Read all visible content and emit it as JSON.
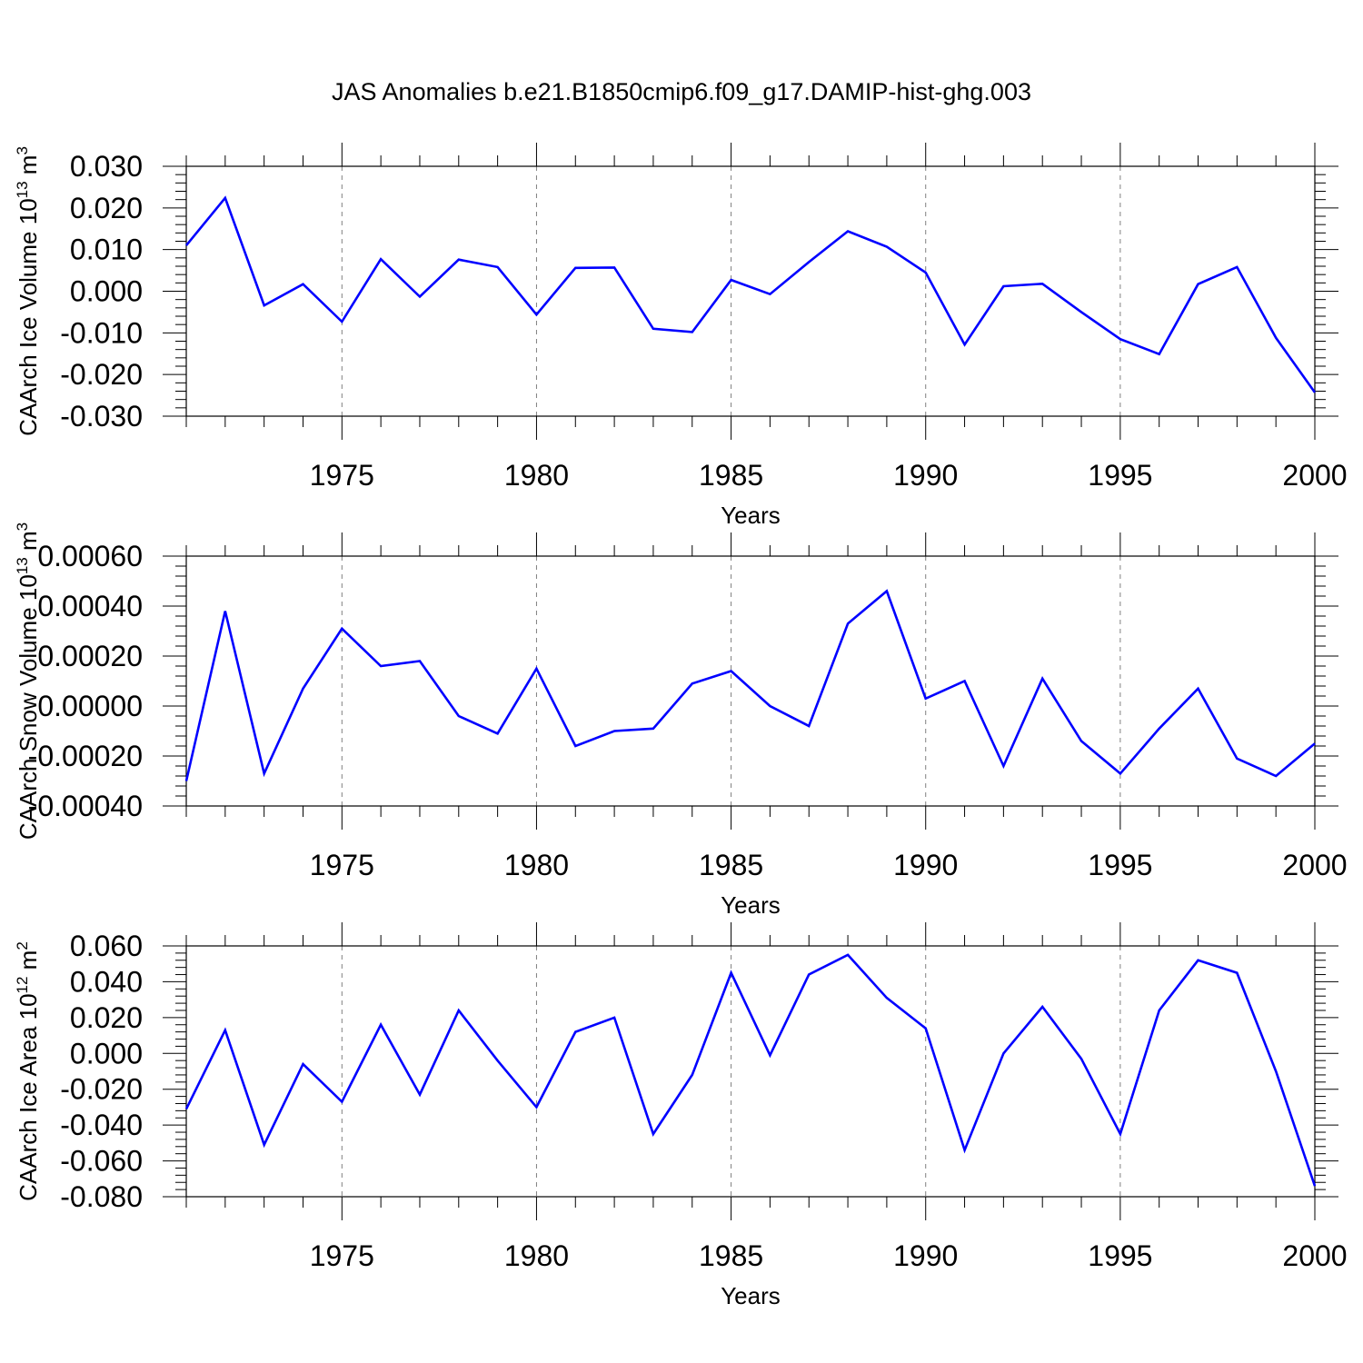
{
  "title": "JAS Anomalies b.e21.B1850cmip6.f09_g17.DAMIP-hist-ghg.003",
  "colors": {
    "series": "#0000ff",
    "axis": "#000000",
    "grid": "#808080"
  },
  "chart_data": [
    {
      "type": "line",
      "ylabel": "CAArch Ice Volume 10",
      "ylabel_exp": "13",
      "ylabel_unit": " m",
      "ylabel_unit_exp": "3",
      "xlabel": "Years",
      "xlim": [
        1971,
        2000
      ],
      "ylim": [
        -0.03,
        0.03
      ],
      "x_ticks": [
        1975,
        1980,
        1985,
        1990,
        1995,
        2000
      ],
      "x_tick_labels": [
        "1975",
        "1980",
        "1985",
        "1990",
        "1995",
        "2000"
      ],
      "y_ticks": [
        -0.03,
        -0.02,
        -0.01,
        0,
        0.01,
        0.02,
        0.03
      ],
      "y_tick_labels": [
        "-0.030",
        "-0.020",
        "-0.010",
        "0.000",
        "0.010",
        "0.020",
        "0.030"
      ],
      "grid": "vertical dashed at major x ticks",
      "series": [
        {
          "name": "CAArch Ice Volume",
          "x": [
            1971,
            1972,
            1973,
            1974,
            1975,
            1976,
            1977,
            1978,
            1979,
            1980,
            1981,
            1982,
            1983,
            1984,
            1985,
            1986,
            1987,
            1988,
            1989,
            1990,
            1991,
            1992,
            1993,
            1994,
            1995,
            1996,
            1997,
            1998,
            1999,
            2000
          ],
          "values": [
            0.011,
            0.0224,
            -0.0034,
            0.0017,
            -0.0073,
            0.0077,
            -0.0013,
            0.0076,
            0.0058,
            -0.0056,
            0.0056,
            0.0057,
            -0.009,
            -0.0098,
            0.0027,
            -0.0007,
            0.007,
            0.0144,
            0.0107,
            0.0045,
            -0.0128,
            0.0012,
            0.0018,
            -0.005,
            -0.0115,
            -0.0151,
            0.0017,
            0.0058,
            -0.0112,
            -0.0243
          ]
        }
      ]
    },
    {
      "type": "line",
      "ylabel": "CAArch Snow Volume 10",
      "ylabel_exp": "13",
      "ylabel_unit": " m",
      "ylabel_unit_exp": "3",
      "xlabel": "Years",
      "xlim": [
        1971,
        2000
      ],
      "ylim": [
        -0.0004,
        0.0006
      ],
      "x_ticks": [
        1975,
        1980,
        1985,
        1990,
        1995,
        2000
      ],
      "x_tick_labels": [
        "1975",
        "1980",
        "1985",
        "1990",
        "1995",
        "2000"
      ],
      "y_ticks": [
        -0.0004,
        -0.0002,
        0,
        0.0002,
        0.0004,
        0.0006
      ],
      "y_tick_labels": [
        "-0.00040",
        "-0.00020",
        "0.00000",
        "0.00020",
        "0.00040",
        "0.00060"
      ],
      "grid": "vertical dashed at major x ticks",
      "series": [
        {
          "name": "CAArch Snow Volume",
          "x": [
            1971,
            1972,
            1973,
            1974,
            1975,
            1976,
            1977,
            1978,
            1979,
            1980,
            1981,
            1982,
            1983,
            1984,
            1985,
            1986,
            1987,
            1988,
            1989,
            1990,
            1991,
            1992,
            1993,
            1994,
            1995,
            1996,
            1997,
            1998,
            1999,
            2000
          ],
          "values": [
            -0.0003,
            0.00038,
            -0.00027,
            7e-05,
            0.00031,
            0.00016,
            0.00018,
            -4e-05,
            -0.00011,
            0.00015,
            -0.00016,
            -0.0001,
            -9e-05,
            9e-05,
            0.00014,
            0.0,
            -8e-05,
            0.00033,
            0.00046,
            3e-05,
            0.0001,
            -0.00024,
            0.00011,
            -0.00014,
            -0.00027,
            -9e-05,
            7e-05,
            -0.00021,
            -0.00028,
            -0.00015
          ]
        }
      ]
    },
    {
      "type": "line",
      "ylabel": "CAArch Ice Area 10",
      "ylabel_exp": "12",
      "ylabel_unit": " m",
      "ylabel_unit_exp": "2",
      "xlabel": "Years",
      "xlim": [
        1971,
        2000
      ],
      "ylim": [
        -0.08,
        0.06
      ],
      "x_ticks": [
        1975,
        1980,
        1985,
        1990,
        1995,
        2000
      ],
      "x_tick_labels": [
        "1975",
        "1980",
        "1985",
        "1990",
        "1995",
        "2000"
      ],
      "y_ticks": [
        -0.08,
        -0.06,
        -0.04,
        -0.02,
        0,
        0.02,
        0.04,
        0.06
      ],
      "y_tick_labels": [
        "-0.080",
        "-0.060",
        "-0.040",
        "-0.020",
        "0.000",
        "0.020",
        "0.040",
        "0.060"
      ],
      "grid": "vertical dashed at major x ticks",
      "series": [
        {
          "name": "CAArch Ice Area",
          "x": [
            1971,
            1972,
            1973,
            1974,
            1975,
            1976,
            1977,
            1978,
            1979,
            1980,
            1981,
            1982,
            1983,
            1984,
            1985,
            1986,
            1987,
            1988,
            1989,
            1990,
            1991,
            1992,
            1993,
            1994,
            1995,
            1996,
            1997,
            1998,
            1999,
            2000
          ],
          "values": [
            -0.031,
            0.013,
            -0.051,
            -0.006,
            -0.027,
            0.016,
            -0.023,
            0.024,
            -0.004,
            -0.03,
            0.012,
            0.02,
            -0.045,
            -0.012,
            0.045,
            -0.001,
            0.044,
            0.055,
            0.031,
            0.014,
            -0.054,
            0.0,
            0.026,
            -0.003,
            -0.045,
            0.024,
            0.052,
            0.045,
            -0.01,
            -0.074
          ]
        }
      ]
    }
  ]
}
